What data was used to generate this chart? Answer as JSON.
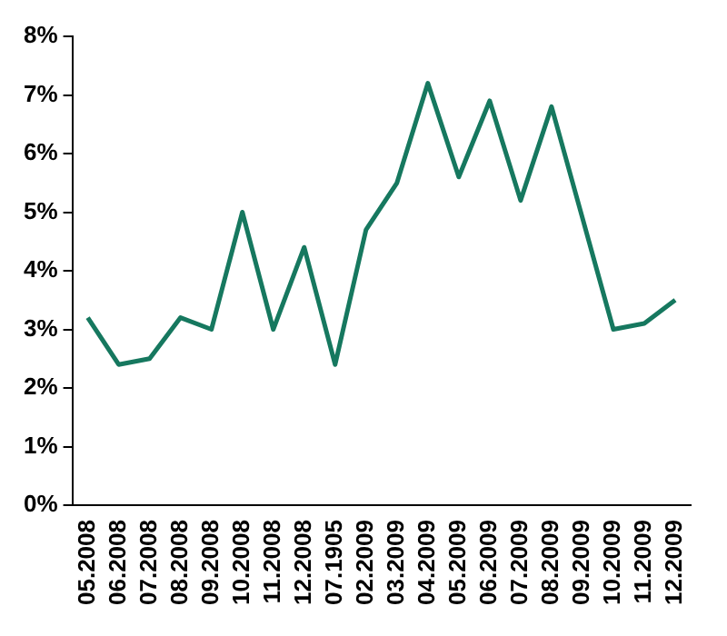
{
  "chart_data": {
    "type": "line",
    "categories": [
      "05.2008",
      "06.2008",
      "07.2008",
      "08.2008",
      "09.2008",
      "10.2008",
      "11.2008",
      "12.2008",
      "07.1905",
      "02.2009",
      "03.2009",
      "04.2009",
      "05.2009",
      "06.2009",
      "07.2009",
      "08.2009",
      "09.2009",
      "10.2009",
      "11.2009",
      "12.2009"
    ],
    "series": [
      {
        "color": "#16785f",
        "values": [
          3.2,
          2.4,
          2.5,
          3.2,
          3.0,
          5.0,
          3.0,
          4.4,
          2.4,
          4.7,
          5.5,
          7.2,
          5.6,
          6.9,
          5.2,
          6.8,
          4.9,
          3.0,
          3.1,
          3.5
        ]
      }
    ],
    "ylim": [
      0,
      8
    ],
    "yticks": [
      {
        "value": 0,
        "label": "0%"
      },
      {
        "value": 1,
        "label": "1%"
      },
      {
        "value": 2,
        "label": "2%"
      },
      {
        "value": 3,
        "label": "3%"
      },
      {
        "value": 4,
        "label": "4%"
      },
      {
        "value": 5,
        "label": "5%"
      },
      {
        "value": 6,
        "label": "6%"
      },
      {
        "value": 7,
        "label": "7%"
      },
      {
        "value": 8,
        "label": "8%"
      }
    ],
    "grid": false,
    "legend": false,
    "marker": "none",
    "line_style": "solid"
  }
}
